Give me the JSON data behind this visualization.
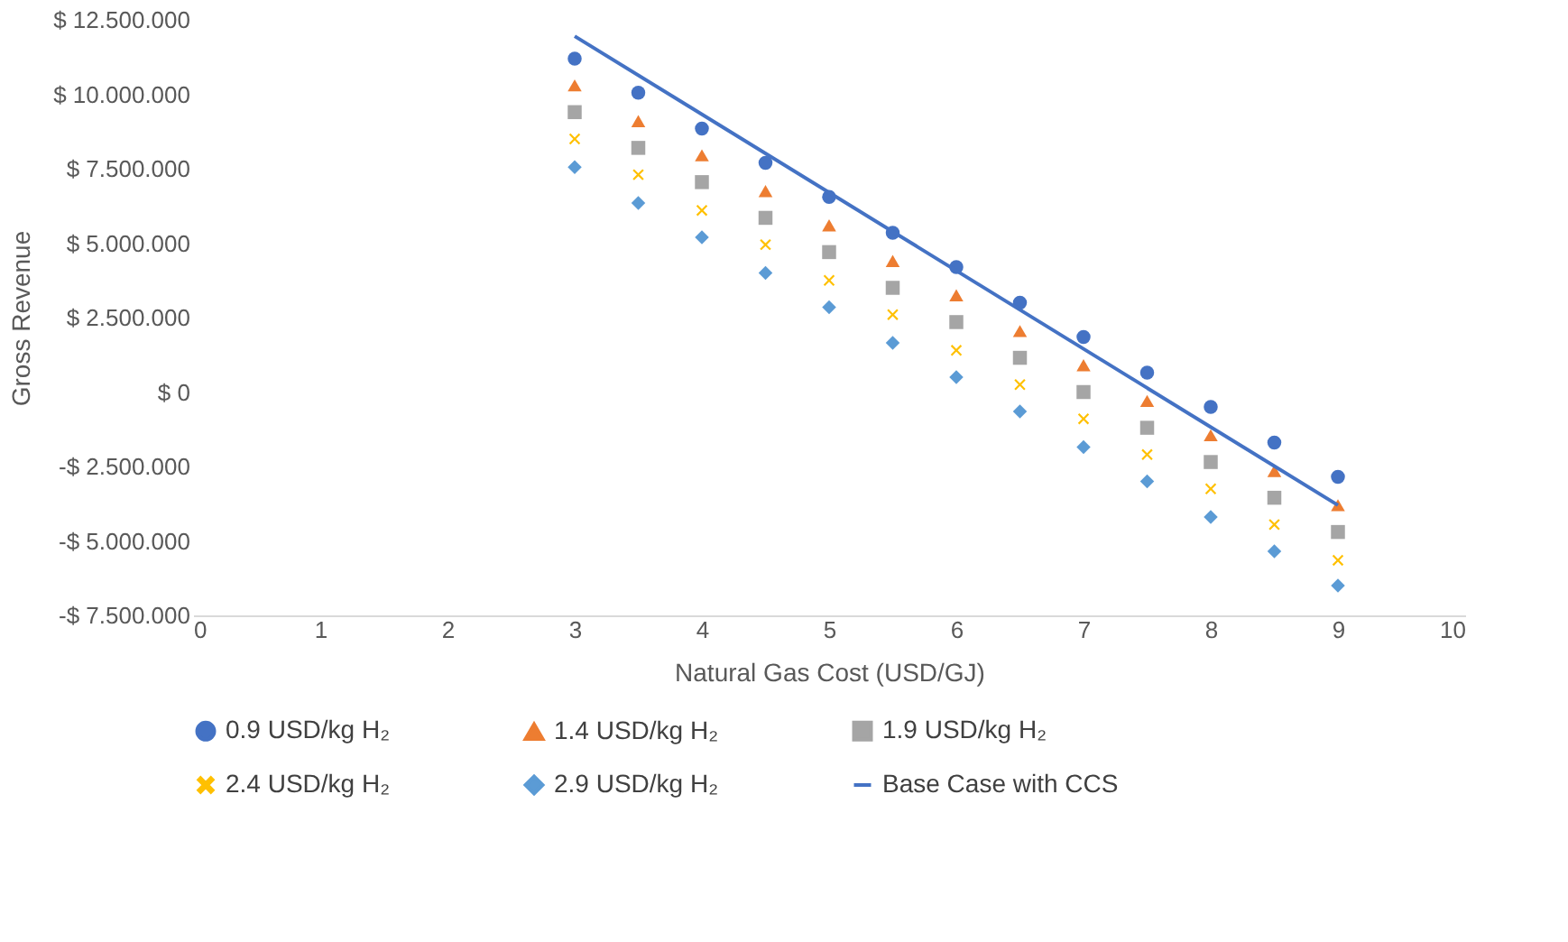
{
  "chart_data": {
    "type": "scatter",
    "xlabel": "Natural Gas Cost (USD/GJ)",
    "ylabel": "Gross Revenue",
    "x": [
      3,
      3.5,
      4,
      4.5,
      5,
      5.5,
      6,
      6.5,
      7,
      7.5,
      8,
      8.5,
      9
    ],
    "series": [
      {
        "name": "0.9 USD/kg H₂",
        "color": "#4472c4",
        "marker": "circle",
        "values": [
          11200000,
          10050000,
          8850000,
          7700000,
          6550000,
          5350000,
          4200000,
          3000000,
          1850000,
          650000,
          -500000,
          -1700000,
          -2850000
        ]
      },
      {
        "name": "1.4 USD/kg H₂",
        "color": "#ed7d31",
        "marker": "triangle",
        "values": [
          10300000,
          9100000,
          7950000,
          6750000,
          5600000,
          4400000,
          3250000,
          2050000,
          900000,
          -300000,
          -1450000,
          -2650000,
          -3800000
        ]
      },
      {
        "name": "1.9 USD/kg H₂",
        "color": "#a5a5a5",
        "marker": "square",
        "values": [
          9400000,
          8200000,
          7050000,
          5850000,
          4700000,
          3500000,
          2350000,
          1150000,
          0,
          -1200000,
          -2350000,
          -3550000,
          -4700000
        ]
      },
      {
        "name": "2.4 USD/kg H₂",
        "color": "#ffc000",
        "marker": "cross",
        "values": [
          8500000,
          7300000,
          6100000,
          4950000,
          3750000,
          2600000,
          1400000,
          250000,
          -900000,
          -2100000,
          -3250000,
          -4450000,
          -5650000
        ]
      },
      {
        "name": "2.9 USD/kg H₂",
        "color": "#5b9bd5",
        "marker": "diamond",
        "values": [
          7550000,
          6350000,
          5200000,
          4000000,
          2850000,
          1650000,
          500000,
          -650000,
          -1850000,
          -3000000,
          -4200000,
          -5350000,
          -6500000
        ]
      },
      {
        "name": "Base Case with CCS",
        "type": "line",
        "color": "#4472c4",
        "x": [
          3,
          9
        ],
        "values": [
          11950000,
          -3800000
        ]
      }
    ],
    "xlim": [
      0,
      10
    ],
    "xticks": [
      0,
      1,
      2,
      3,
      4,
      5,
      6,
      7,
      8,
      9,
      10
    ],
    "ylim": [
      -7500000,
      12500000
    ],
    "yticks": [
      {
        "value": -7500000,
        "label": "-$ 7.500.000"
      },
      {
        "value": -5000000,
        "label": "-$ 5.000.000"
      },
      {
        "value": -2500000,
        "label": "-$ 2.500.000"
      },
      {
        "value": 0,
        "label": "$ 0"
      },
      {
        "value": 2500000,
        "label": "$ 2.500.000"
      },
      {
        "value": 5000000,
        "label": "$ 5.000.000"
      },
      {
        "value": 7500000,
        "label": "$ 7.500.000"
      },
      {
        "value": 10000000,
        "label": "$ 10.000.000"
      },
      {
        "value": 12500000,
        "label": "$ 12.500.000"
      }
    ],
    "grid": false,
    "legend": "bottom"
  }
}
